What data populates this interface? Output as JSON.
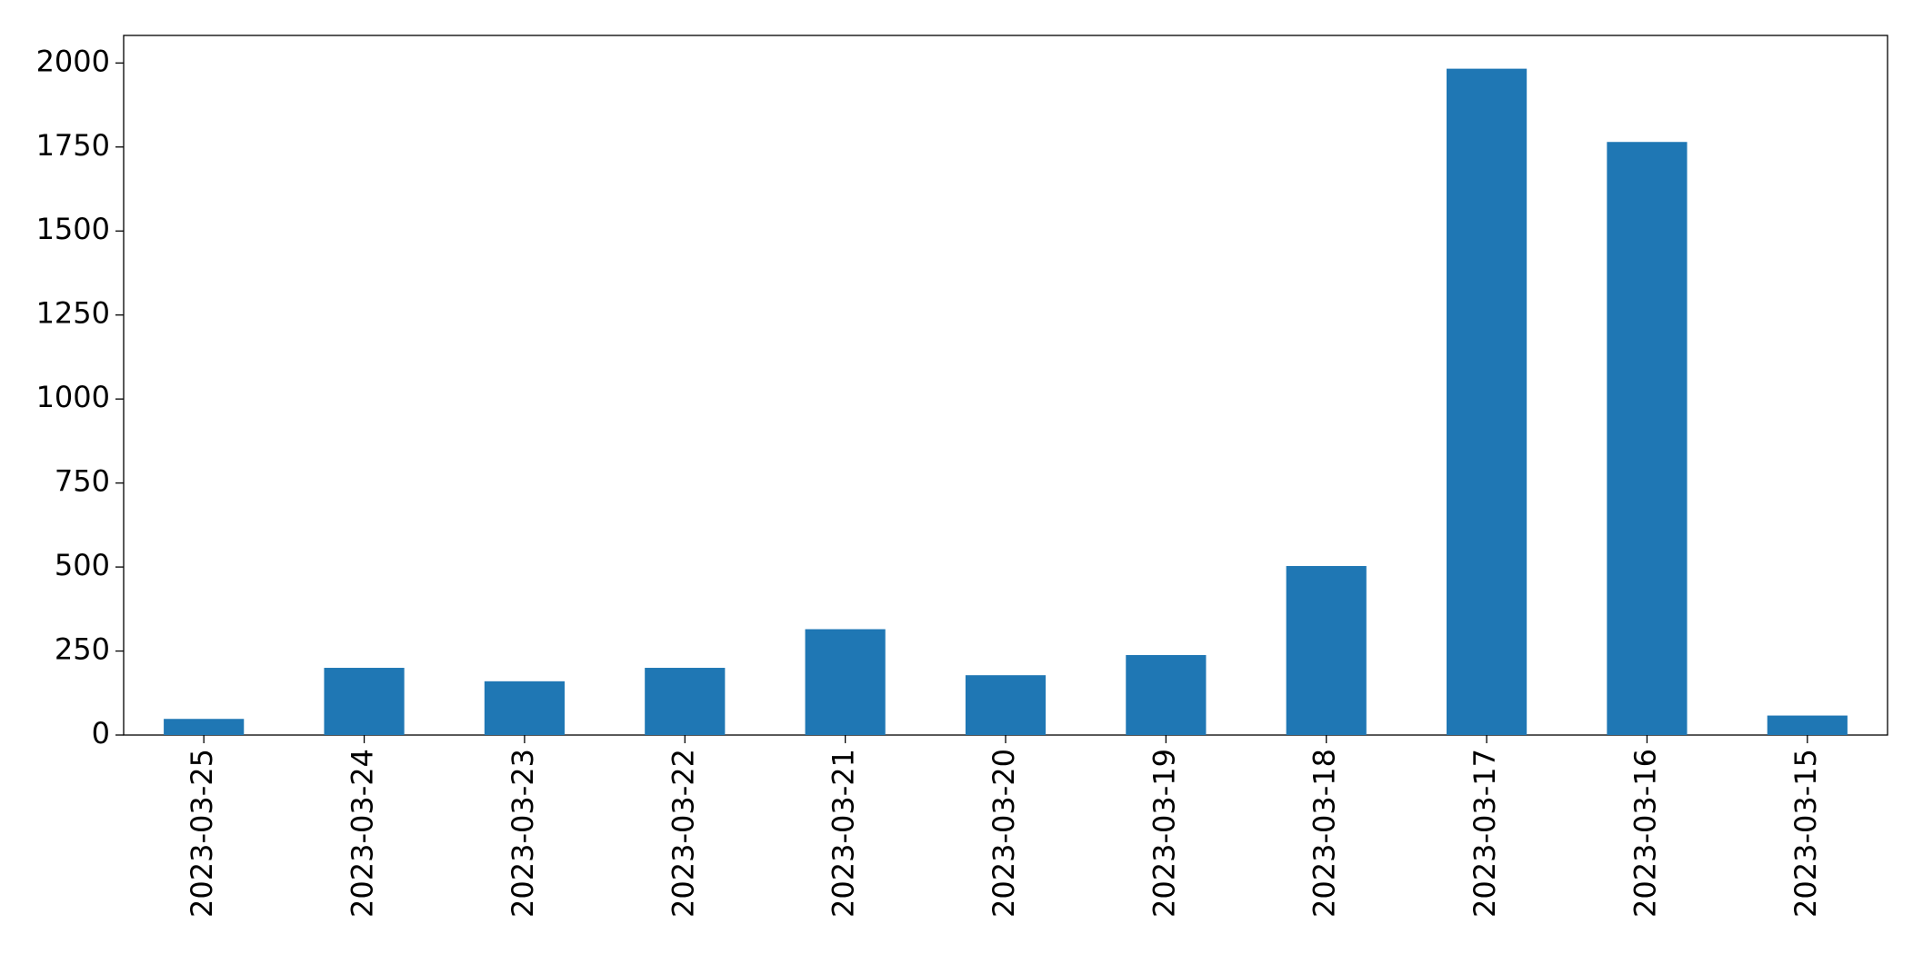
{
  "chart_data": {
    "type": "bar",
    "categories": [
      "2023-03-25",
      "2023-03-24",
      "2023-03-23",
      "2023-03-22",
      "2023-03-21",
      "2023-03-20",
      "2023-03-19",
      "2023-03-18",
      "2023-03-17",
      "2023-03-16",
      "2023-03-15"
    ],
    "values": [
      48,
      200,
      160,
      200,
      315,
      178,
      238,
      503,
      1983,
      1765,
      58
    ],
    "color": "#1f77b4",
    "ylim": [
      0,
      2082
    ],
    "yticks": [
      0,
      250,
      500,
      750,
      1000,
      1250,
      1500,
      1750,
      2000
    ],
    "grid": false
  }
}
